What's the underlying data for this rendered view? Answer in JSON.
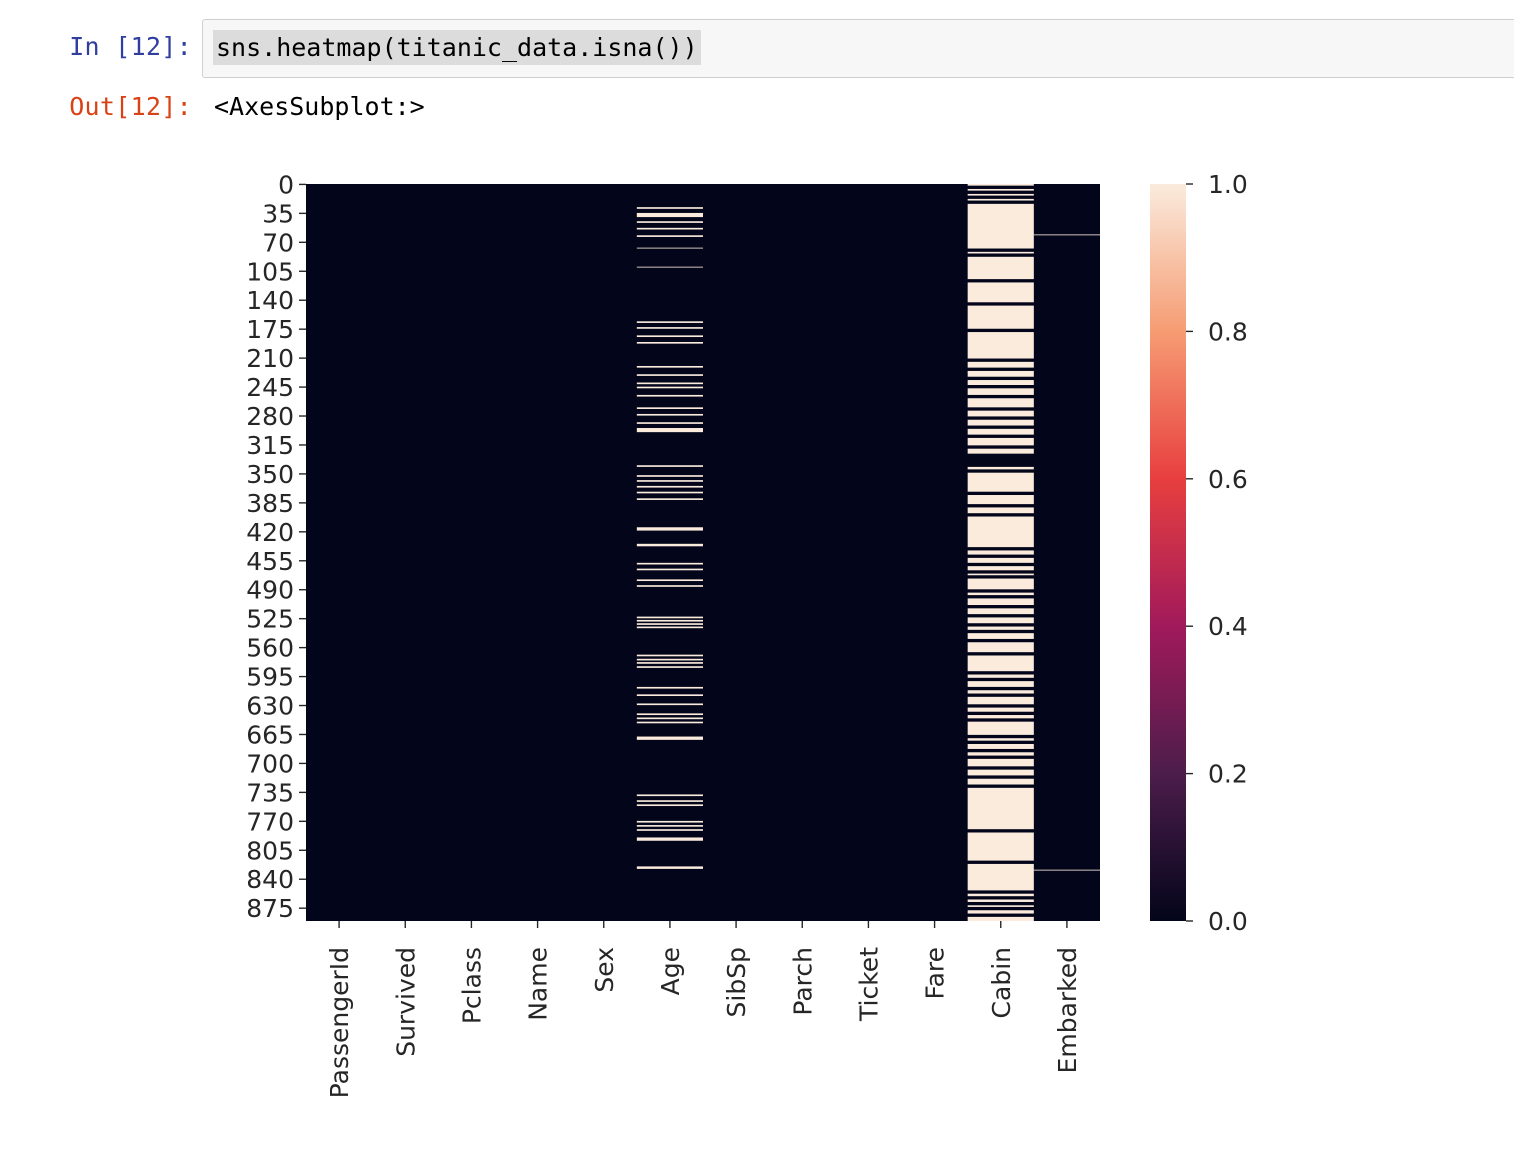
{
  "cell": {
    "in_prompt": "In [12]:",
    "code": "sns.heatmap(titanic_data.isna())",
    "out_prompt": "Out[12]:",
    "output_text": "<AxesSubplot:>"
  },
  "chart_data": {
    "type": "heatmap",
    "title": "",
    "xlabel": "",
    "ylabel": "",
    "n_rows": 891,
    "columns": [
      "PassengerId",
      "Survived",
      "Pclass",
      "Name",
      "Sex",
      "Age",
      "SibSp",
      "Parch",
      "Ticket",
      "Fare",
      "Cabin",
      "Embarked"
    ],
    "y_ticks": [
      0,
      35,
      70,
      105,
      140,
      175,
      210,
      245,
      280,
      315,
      350,
      385,
      420,
      455,
      490,
      525,
      560,
      595,
      630,
      665,
      700,
      735,
      770,
      805,
      840,
      875
    ],
    "colorbar": {
      "range": [
        0.0,
        1.0
      ],
      "ticks": [
        "0.0",
        "0.2",
        "0.4",
        "0.6",
        "0.8",
        "1.0"
      ],
      "colormap": "rocket",
      "colors": [
        "#03051a",
        "#4c1d4b",
        "#a11a5b",
        "#e83f3f",
        "#f69c73",
        "#faebdd"
      ]
    },
    "missing_rows": {
      "Age": [
        [
          28,
          30
        ],
        [
          35,
          40
        ],
        [
          45,
          47
        ],
        [
          53,
          55
        ],
        [
          62,
          64
        ],
        [
          77,
          78
        ],
        [
          100,
          101
        ],
        [
          166,
          168
        ],
        [
          173,
          175
        ],
        [
          183,
          185
        ],
        [
          191,
          193
        ],
        [
          220,
          222
        ],
        [
          230,
          232
        ],
        [
          240,
          242
        ],
        [
          245,
          247
        ],
        [
          255,
          257
        ],
        [
          270,
          272
        ],
        [
          278,
          280
        ],
        [
          288,
          290
        ],
        [
          295,
          300
        ],
        [
          340,
          342
        ],
        [
          352,
          354
        ],
        [
          358,
          360
        ],
        [
          365,
          367
        ],
        [
          372,
          374
        ],
        [
          380,
          382
        ],
        [
          415,
          419
        ],
        [
          435,
          438
        ],
        [
          458,
          460
        ],
        [
          465,
          467
        ],
        [
          478,
          480
        ],
        [
          485,
          487
        ],
        [
          523,
          525
        ],
        [
          527,
          529
        ],
        [
          531,
          533
        ],
        [
          535,
          537
        ],
        [
          569,
          571
        ],
        [
          574,
          576
        ],
        [
          578,
          580
        ],
        [
          583,
          585
        ],
        [
          608,
          610
        ],
        [
          617,
          619
        ],
        [
          628,
          630
        ],
        [
          640,
          642
        ],
        [
          645,
          647
        ],
        [
          650,
          652
        ],
        [
          668,
          672
        ],
        [
          738,
          740
        ],
        [
          745,
          747
        ],
        [
          750,
          752
        ],
        [
          770,
          772
        ],
        [
          775,
          777
        ],
        [
          780,
          782
        ],
        [
          790,
          794
        ],
        [
          825,
          828
        ]
      ],
      "Cabin": [
        [
          0,
          2
        ],
        [
          6,
          8
        ],
        [
          12,
          14
        ],
        [
          18,
          20
        ],
        [
          24,
          78
        ],
        [
          82,
          84
        ],
        [
          88,
          115
        ],
        [
          119,
          143
        ],
        [
          147,
          175
        ],
        [
          179,
          211
        ],
        [
          215,
          222
        ],
        [
          226,
          233
        ],
        [
          237,
          243
        ],
        [
          247,
          255
        ],
        [
          259,
          270
        ],
        [
          274,
          281
        ],
        [
          285,
          292
        ],
        [
          296,
          303
        ],
        [
          307,
          316
        ],
        [
          320,
          326
        ],
        [
          342,
          345
        ],
        [
          349,
          372
        ],
        [
          376,
          387
        ],
        [
          391,
          398
        ],
        [
          402,
          439
        ],
        [
          443,
          448
        ],
        [
          452,
          458
        ],
        [
          462,
          467
        ],
        [
          471,
          473
        ],
        [
          477,
          490
        ],
        [
          494,
          497
        ],
        [
          501,
          509
        ],
        [
          513,
          520
        ],
        [
          524,
          531
        ],
        [
          535,
          539
        ],
        [
          543,
          550
        ],
        [
          554,
          566
        ],
        [
          570,
          589
        ],
        [
          593,
          597
        ],
        [
          601,
          608
        ],
        [
          612,
          616
        ],
        [
          620,
          629
        ],
        [
          633,
          638
        ],
        [
          642,
          646
        ],
        [
          650,
          666
        ],
        [
          670,
          673
        ],
        [
          677,
          683
        ],
        [
          687,
          691
        ],
        [
          695,
          704
        ],
        [
          708,
          715
        ],
        [
          719,
          726
        ],
        [
          730,
          780
        ],
        [
          784,
          818
        ],
        [
          822,
          854
        ],
        [
          858,
          861
        ],
        [
          865,
          868
        ],
        [
          872,
          874
        ],
        [
          878,
          882
        ],
        [
          886,
          891
        ]
      ],
      "Embarked": [
        [
          61,
          62
        ],
        [
          829,
          830
        ]
      ]
    }
  }
}
